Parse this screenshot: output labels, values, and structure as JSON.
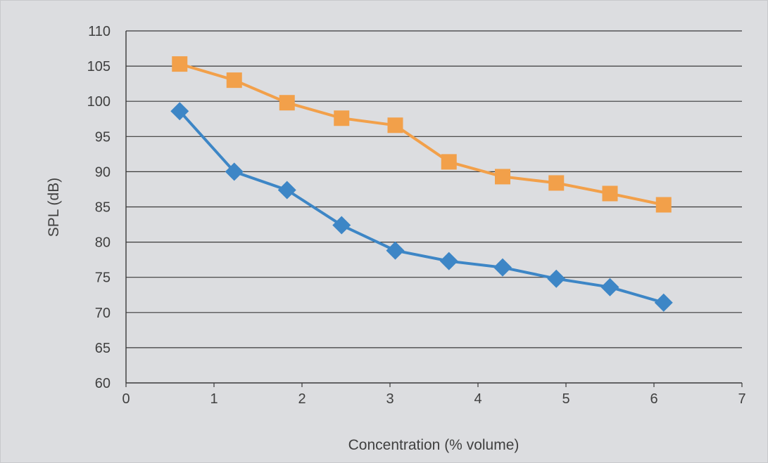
{
  "chart_data": {
    "type": "line",
    "title": "",
    "xlabel": "Concentration (% volume)",
    "ylabel": "SPL (dB)",
    "xlim": [
      0,
      7
    ],
    "ylim": [
      60,
      110
    ],
    "xticks": [
      0,
      1,
      2,
      3,
      4,
      5,
      6,
      7
    ],
    "yticks": [
      60,
      65,
      70,
      75,
      80,
      85,
      90,
      95,
      100,
      105,
      110
    ],
    "grid": "horizontal",
    "legend": "none",
    "background_color": "#dcdde0",
    "series": [
      {
        "marker": "square",
        "color": "#f2a04a",
        "points": [
          {
            "x": 0.61,
            "y": 105.3
          },
          {
            "x": 1.23,
            "y": 103.0
          },
          {
            "x": 1.83,
            "y": 99.8
          },
          {
            "x": 2.45,
            "y": 97.6
          },
          {
            "x": 3.06,
            "y": 96.6
          },
          {
            "x": 3.67,
            "y": 91.4
          },
          {
            "x": 4.28,
            "y": 89.3
          },
          {
            "x": 4.89,
            "y": 88.4
          },
          {
            "x": 5.5,
            "y": 86.9
          },
          {
            "x": 6.11,
            "y": 85.3
          }
        ]
      },
      {
        "marker": "diamond",
        "color": "#3d86c6",
        "points": [
          {
            "x": 0.61,
            "y": 98.6
          },
          {
            "x": 1.23,
            "y": 90.0
          },
          {
            "x": 1.83,
            "y": 87.4
          },
          {
            "x": 2.45,
            "y": 82.4
          },
          {
            "x": 3.06,
            "y": 78.8
          },
          {
            "x": 3.67,
            "y": 77.3
          },
          {
            "x": 4.28,
            "y": 76.4
          },
          {
            "x": 4.89,
            "y": 74.8
          },
          {
            "x": 5.5,
            "y": 73.6
          },
          {
            "x": 6.11,
            "y": 71.4
          }
        ]
      }
    ]
  }
}
